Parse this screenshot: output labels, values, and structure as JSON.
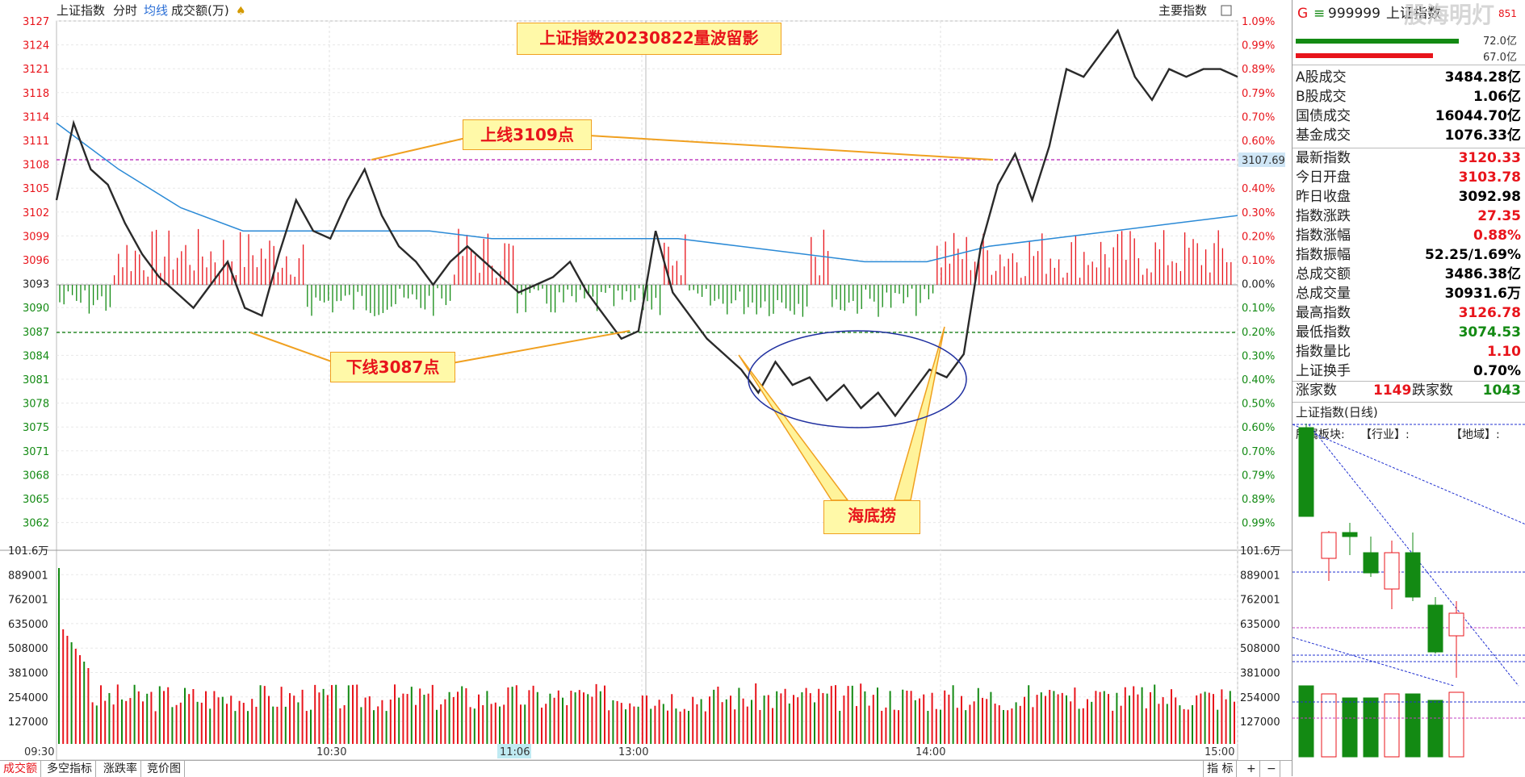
{
  "header": {
    "title": "上证指数",
    "tab_fenshi": "分时",
    "tab_junxian": "均线",
    "tab_volume": "成交额(万)",
    "right_label": "主要指数"
  },
  "annotations": {
    "main_title": "上证指数20230822量波留影",
    "upper_line": "上线3109点",
    "lower_line": "下线3087点",
    "sea_bottom": "海底捞"
  },
  "price_axis": {
    "left_ticks": [
      "3127",
      "3124",
      "3121",
      "3118",
      "3114",
      "3111",
      "3108",
      "3105",
      "3102",
      "3099",
      "3096",
      "3093",
      "3090",
      "3087",
      "3084",
      "3081",
      "3078",
      "3075",
      "3071",
      "3068",
      "3065",
      "3062"
    ],
    "right_ticks": [
      "1.09%",
      "0.99%",
      "0.89%",
      "0.79%",
      "0.70%",
      "0.60%",
      "3107.69",
      "0.40%",
      "0.30%",
      "0.20%",
      "0.10%",
      "0.00%",
      "0.10%",
      "0.20%",
      "0.30%",
      "0.40%",
      "0.50%",
      "0.60%",
      "0.70%",
      "0.79%",
      "0.89%",
      "0.99%"
    ],
    "current_marker": "3107.69"
  },
  "volume_axis": {
    "ticks": [
      "101.6万",
      "889001",
      "762001",
      "635000",
      "508000",
      "381000",
      "254000",
      "127000"
    ]
  },
  "time_axis": {
    "labels": [
      "09:30",
      "10:30",
      "13:00",
      "14:00",
      "15:00"
    ],
    "cursor_label": "11:06"
  },
  "bottom_tabs": [
    "成交额",
    "多空指标",
    "涨跌率",
    "竞价图"
  ],
  "bottom_right": [
    "指 标",
    "+",
    "−"
  ],
  "side_header": {
    "g": "G",
    "menu": "≡",
    "code": "999999",
    "name": "上证指数",
    "watermark": "股海明灯",
    "bar_vals": [
      "72.0亿",
      "67.0亿"
    ],
    "tag": "851"
  },
  "side_stats_1": [
    {
      "k": "A股成交",
      "v": "3484.28亿",
      "c": "blk"
    },
    {
      "k": "B股成交",
      "v": "1.06亿",
      "c": "blk"
    },
    {
      "k": "国债成交",
      "v": "16044.70亿",
      "c": "blk"
    },
    {
      "k": "基金成交",
      "v": "1076.33亿",
      "c": "blk"
    }
  ],
  "side_stats_2": [
    {
      "k": "最新指数",
      "v": "3120.33",
      "c": "red"
    },
    {
      "k": "今日开盘",
      "v": "3103.78",
      "c": "red"
    },
    {
      "k": "昨日收盘",
      "v": "3092.98",
      "c": "blk"
    },
    {
      "k": "指数涨跌",
      "v": "27.35",
      "c": "red"
    },
    {
      "k": "指数涨幅",
      "v": "0.88%",
      "c": "red"
    },
    {
      "k": "指数振幅",
      "v": "52.25/1.69%",
      "c": "blk"
    },
    {
      "k": "总成交额",
      "v": "3486.38亿",
      "c": "blk"
    },
    {
      "k": "总成交量",
      "v": "30931.6万",
      "c": "blk"
    },
    {
      "k": "最高指数",
      "v": "3126.78",
      "c": "red"
    },
    {
      "k": "最低指数",
      "v": "3074.53",
      "c": "green"
    },
    {
      "k": "指数量比",
      "v": "1.10",
      "c": "red"
    },
    {
      "k": "上证换手",
      "v": "0.70%",
      "c": "blk"
    }
  ],
  "breadth": {
    "up_label": "涨家数",
    "up": "1149",
    "down_label": "跌家数",
    "down": "1043"
  },
  "daily": {
    "title": "上证指数(日线)",
    "sector": "所属板块:",
    "industry": "【行业】:",
    "region": "【地域】:"
  },
  "colors": {
    "up": "#e8141b",
    "down": "#138a13",
    "avg": "#2b8ad6",
    "price": "#2a2a2a",
    "upper": "#c040c0",
    "lower": "#2a8a2a"
  },
  "chart_data": {
    "type": "line",
    "price_series_approx": [
      3104,
      3114,
      3108,
      3106,
      3101,
      3097,
      3094,
      3092,
      3090,
      3093,
      3096,
      3090,
      3089,
      3097,
      3104,
      3100,
      3099,
      3104,
      3108,
      3102,
      3098,
      3096,
      3093,
      3096,
      3098,
      3096,
      3094,
      3092,
      3093,
      3094,
      3096,
      3092,
      3089,
      3086,
      3087,
      3100,
      3092,
      3089,
      3086,
      3084,
      3082,
      3079,
      3083,
      3080,
      3081,
      3078,
      3080,
      3077,
      3079,
      3076,
      3079,
      3082,
      3081,
      3084,
      3098,
      3106,
      3110,
      3104,
      3111,
      3121,
      3120,
      3123,
      3126,
      3120,
      3117,
      3121,
      3120,
      3121,
      3121,
      3120
    ],
    "avg_series_approx": [
      3114,
      3108,
      3103,
      3100,
      3100,
      3100,
      3100,
      3099,
      3099,
      3099,
      3099,
      3098,
      3097,
      3096,
      3096,
      3098,
      3099,
      3100,
      3101,
      3102
    ]
  }
}
